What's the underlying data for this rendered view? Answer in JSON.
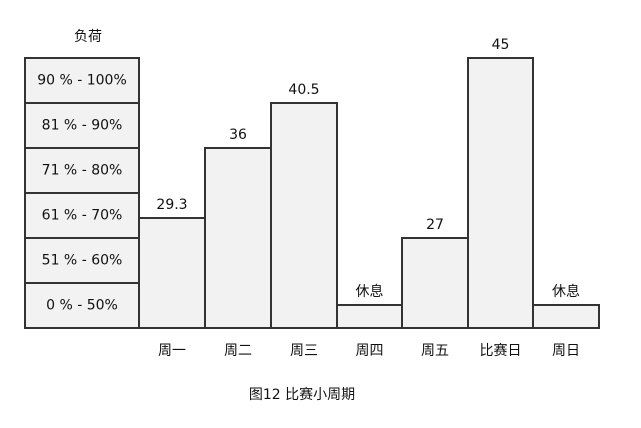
{
  "load_label": "负荷",
  "load_bands": [
    "90 % - 100%",
    "81 % - 90%",
    "71 % - 80%",
    "61 % - 70%",
    "51 % - 60%",
    "0 % - 50%"
  ],
  "days": [
    {
      "label": "周一",
      "load": "29.3"
    },
    {
      "label": "周二",
      "load": "36"
    },
    {
      "label": "周三",
      "load": "40.5"
    },
    {
      "label": "周四",
      "load": "休息"
    },
    {
      "label": "周五",
      "load": "27"
    },
    {
      "label": "比赛日",
      "load": "45"
    },
    {
      "label": "周日",
      "load": "休息"
    }
  ],
  "caption": "图12 比赛小周期"
}
